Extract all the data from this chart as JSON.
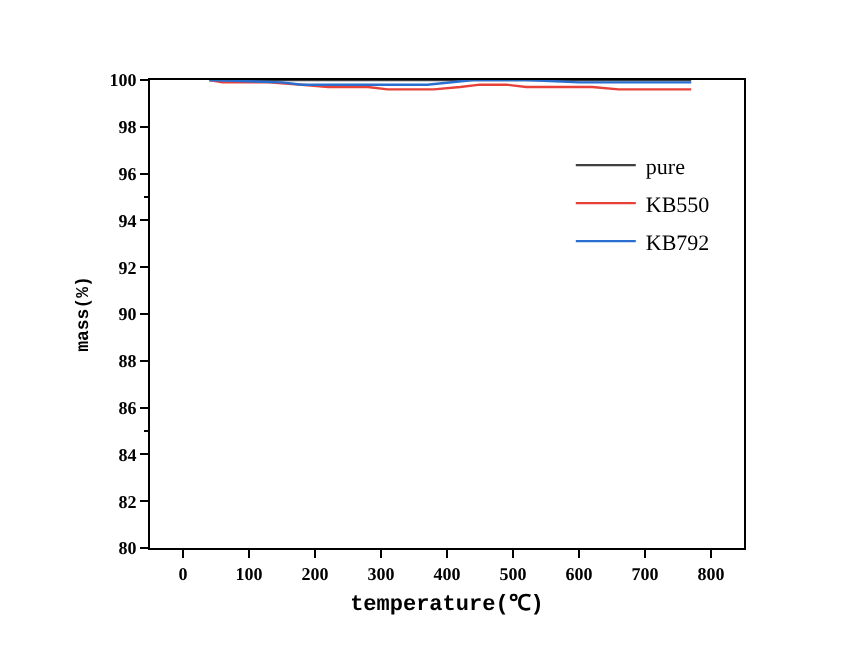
{
  "chart_data": {
    "type": "line",
    "xlabel": "temperature(℃)",
    "ylabel": "mass(%)",
    "xlim": [
      -50,
      850
    ],
    "xticks": [
      0,
      100,
      200,
      300,
      400,
      500,
      600,
      700,
      800
    ],
    "ylim": [
      80,
      100
    ],
    "yticks": [
      80,
      82,
      84,
      86,
      88,
      90,
      92,
      94,
      96,
      98,
      100
    ],
    "grid": false,
    "legend": "top right",
    "marker": "none",
    "line_style": "solid",
    "series": [
      {
        "name": "pure",
        "color": "#404040",
        "x": [
          40,
          770
        ],
        "values": [
          100,
          100
        ]
      },
      {
        "name": "KB550",
        "color": "#e8413a",
        "x": [
          40,
          60,
          130,
          180,
          220,
          280,
          310,
          380,
          420,
          450,
          490,
          520,
          560,
          620,
          660,
          700,
          770
        ],
        "values": [
          100,
          99.9,
          99.9,
          99.8,
          99.7,
          99.7,
          99.6,
          99.6,
          99.7,
          99.8,
          99.8,
          99.7,
          99.7,
          99.7,
          99.6,
          99.6,
          99.6
        ]
      },
      {
        "name": "KB792",
        "color": "#2a6fd0",
        "x": [
          40,
          150,
          180,
          300,
          370,
          440,
          520,
          600,
          700,
          770
        ],
        "values": [
          100,
          99.9,
          99.8,
          99.8,
          99.8,
          100,
          100,
          99.9,
          99.9,
          99.9
        ]
      }
    ]
  }
}
